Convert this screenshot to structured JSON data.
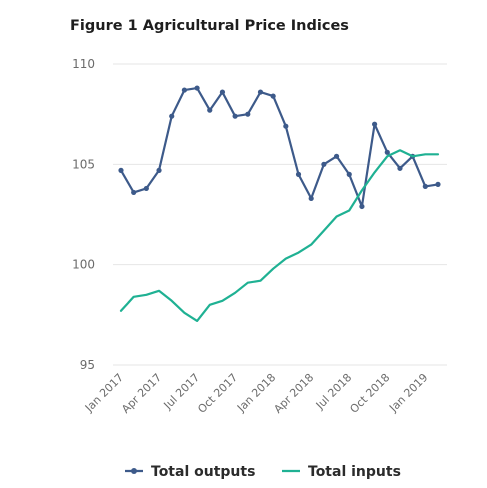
{
  "chart_data": {
    "type": "line",
    "title": "Figure 1 Agricultural Price Indices",
    "xlabel": "",
    "ylabel": "",
    "ylim": [
      95,
      110
    ],
    "yticks": [
      "110",
      "105",
      "100",
      "95"
    ],
    "x": [
      "Jan 2017",
      "Feb 2017",
      "Mar 2017",
      "Apr 2017",
      "May 2017",
      "Jun 2017",
      "Jul 2017",
      "Aug 2017",
      "Sep 2017",
      "Oct 2017",
      "Nov 2017",
      "Dec 2017",
      "Jan 2018",
      "Feb 2018",
      "Mar 2018",
      "Apr 2018",
      "May 2018",
      "Jun 2018",
      "Jul 2018",
      "Aug 2018",
      "Sep 2018",
      "Oct 2018",
      "Nov 2018",
      "Dec 2018",
      "Jan 2019",
      "Feb 2019"
    ],
    "xtick_labels": [
      "Jan 2017",
      "Apr 2017",
      "Jul 2017",
      "Oct 2017",
      "Jan 2018",
      "Apr 2018",
      "Jul 2018",
      "Oct 2018",
      "Jan 2019"
    ],
    "grid": "horizontal",
    "legend_position": "bottom",
    "series": [
      {
        "name": "Total outputs",
        "color": "#3d5a8a",
        "marker": "circle",
        "values": [
          104.7,
          103.6,
          103.8,
          104.7,
          107.4,
          108.7,
          108.8,
          107.7,
          108.6,
          107.4,
          107.5,
          108.6,
          108.4,
          106.9,
          104.5,
          103.3,
          105.0,
          105.4,
          104.5,
          102.9,
          107.0,
          105.6,
          104.8,
          105.4,
          103.9,
          104.0
        ]
      },
      {
        "name": "Total inputs",
        "color": "#1fb193",
        "marker": "none",
        "values": [
          97.7,
          98.4,
          98.5,
          98.7,
          98.2,
          97.6,
          97.2,
          98.0,
          98.2,
          98.6,
          99.1,
          99.2,
          99.8,
          100.3,
          100.6,
          101.0,
          101.7,
          102.4,
          102.7,
          103.7,
          104.6,
          105.4,
          105.7,
          105.4,
          105.5,
          105.5
        ]
      }
    ]
  }
}
